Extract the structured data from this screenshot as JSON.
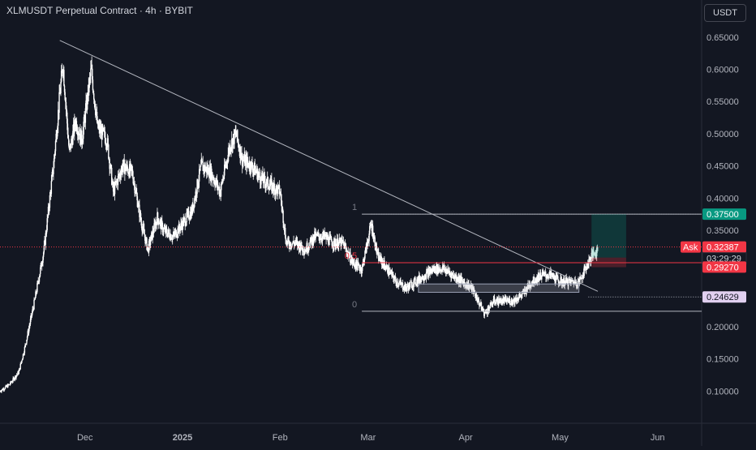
{
  "header": {
    "symbol_title": "XLMUSDT Perpetual Contract · 4h · BYBIT",
    "currency_button": "USDT"
  },
  "colors": {
    "background": "#131722",
    "candle": "#ffffff",
    "trendline": "#b2b5be",
    "level_line": "#b2b5be",
    "target_green": "#089981",
    "stop_red": "#f23645",
    "ask_line": "#f23645",
    "price_label_purple": "#e1d0f0"
  },
  "chart_data": {
    "type": "candlestick",
    "symbol": "XLMUSDT",
    "interval": "4h",
    "exchange": "BYBIT",
    "y_axis": {
      "ticks": [
        "0.65000",
        "0.60000",
        "0.55000",
        "0.50000",
        "0.45000",
        "0.40000",
        "0.35000",
        "0.30000",
        "0.25000",
        "0.20000",
        "0.15000",
        "0.10000"
      ],
      "ylim": [
        0.05,
        0.67
      ]
    },
    "x_axis": {
      "ticks": [
        "Dec",
        "2025",
        "Feb",
        "Mar",
        "Apr",
        "May",
        "Jun"
      ],
      "tick_dates": [
        "2024-12-01",
        "2025-01-01",
        "2025-02-01",
        "2025-03-01",
        "2025-04-01",
        "2025-05-01",
        "2025-06-01"
      ],
      "xlim": [
        "2024-11-04",
        "2025-06-15"
      ]
    },
    "price_series": [
      [
        "2024-11-04",
        0.1
      ],
      [
        "2024-11-07",
        0.11
      ],
      [
        "2024-11-10",
        0.13
      ],
      [
        "2024-11-12",
        0.17
      ],
      [
        "2024-11-15",
        0.24
      ],
      [
        "2024-11-18",
        0.32
      ],
      [
        "2024-11-21",
        0.45
      ],
      [
        "2024-11-23",
        0.56
      ],
      [
        "2024-11-24",
        0.61
      ],
      [
        "2024-11-26",
        0.47
      ],
      [
        "2024-11-28",
        0.52
      ],
      [
        "2024-11-30",
        0.49
      ],
      [
        "2024-12-03",
        0.6
      ],
      [
        "2024-12-05",
        0.51
      ],
      [
        "2024-12-08",
        0.49
      ],
      [
        "2024-12-10",
        0.41
      ],
      [
        "2024-12-13",
        0.45
      ],
      [
        "2024-12-16",
        0.44
      ],
      [
        "2024-12-19",
        0.36
      ],
      [
        "2024-12-21",
        0.32
      ],
      [
        "2024-12-24",
        0.37
      ],
      [
        "2024-12-26",
        0.35
      ],
      [
        "2024-12-29",
        0.34
      ],
      [
        "2025-01-01",
        0.36
      ],
      [
        "2025-01-04",
        0.38
      ],
      [
        "2025-01-07",
        0.45
      ],
      [
        "2025-01-10",
        0.44
      ],
      [
        "2025-01-13",
        0.41
      ],
      [
        "2025-01-16",
        0.48
      ],
      [
        "2025-01-18",
        0.5
      ],
      [
        "2025-01-20",
        0.46
      ],
      [
        "2025-01-23",
        0.45
      ],
      [
        "2025-01-26",
        0.43
      ],
      [
        "2025-01-29",
        0.42
      ],
      [
        "2025-02-01",
        0.41
      ],
      [
        "2025-02-03",
        0.33
      ],
      [
        "2025-02-06",
        0.33
      ],
      [
        "2025-02-09",
        0.32
      ],
      [
        "2025-02-12",
        0.34
      ],
      [
        "2025-02-15",
        0.34
      ],
      [
        "2025-02-18",
        0.33
      ],
      [
        "2025-02-21",
        0.33
      ],
      [
        "2025-02-24",
        0.3
      ],
      [
        "2025-02-27",
        0.29
      ],
      [
        "2025-03-02",
        0.36
      ],
      [
        "2025-03-04",
        0.31
      ],
      [
        "2025-03-07",
        0.29
      ],
      [
        "2025-03-10",
        0.27
      ],
      [
        "2025-03-13",
        0.26
      ],
      [
        "2025-03-16",
        0.27
      ],
      [
        "2025-03-19",
        0.28
      ],
      [
        "2025-03-22",
        0.29
      ],
      [
        "2025-03-25",
        0.29
      ],
      [
        "2025-03-28",
        0.28
      ],
      [
        "2025-03-31",
        0.27
      ],
      [
        "2025-04-03",
        0.26
      ],
      [
        "2025-04-06",
        0.23
      ],
      [
        "2025-04-07",
        0.22
      ],
      [
        "2025-04-10",
        0.24
      ],
      [
        "2025-04-13",
        0.24
      ],
      [
        "2025-04-16",
        0.24
      ],
      [
        "2025-04-19",
        0.25
      ],
      [
        "2025-04-22",
        0.27
      ],
      [
        "2025-04-25",
        0.28
      ],
      [
        "2025-04-28",
        0.28
      ],
      [
        "2025-05-01",
        0.27
      ],
      [
        "2025-05-04",
        0.27
      ],
      [
        "2025-05-07",
        0.27
      ],
      [
        "2025-05-09",
        0.29
      ],
      [
        "2025-05-11",
        0.31
      ],
      [
        "2025-05-13",
        0.32
      ]
    ],
    "trendline": {
      "from": [
        "2024-11-23",
        0.645
      ],
      "to": [
        "2025-05-13",
        0.255
      ]
    },
    "levels": [
      {
        "label": "1",
        "price": 0.375,
        "from": "2025-02-27"
      },
      {
        "label": "0.5",
        "price": 0.2995,
        "from": "2025-02-27"
      },
      {
        "label": "0",
        "price": 0.224,
        "from": "2025-02-27"
      }
    ],
    "zone": {
      "from": "2025-03-17",
      "to": "2025-05-07",
      "top": 0.2665,
      "bottom": 0.2535
    },
    "position": {
      "from": "2025-05-11",
      "to": "2025-05-22",
      "entry": 0.3075,
      "target": 0.375,
      "stop": 0.2925
    },
    "price_labels": [
      {
        "text": "0.37500",
        "price": 0.375,
        "kind": "target"
      },
      {
        "text": "0.32387",
        "price": 0.32387,
        "kind": "ask",
        "tag": "Ask",
        "countdown": "03:29:29"
      },
      {
        "text": "0.29270",
        "price": 0.2927,
        "kind": "stop"
      },
      {
        "text": "0.24629",
        "price": 0.24629,
        "kind": "alert"
      }
    ]
  }
}
